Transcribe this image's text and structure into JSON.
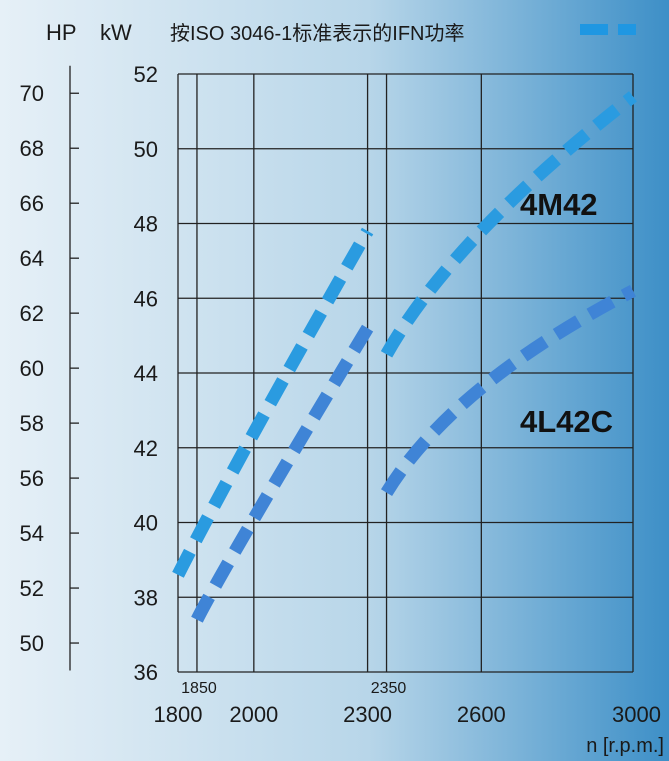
{
  "chart_data": {
    "type": "line",
    "title": "按ISO 3046-1标准表示的IFN功率",
    "xlabel": "n [r.p.m.]",
    "ylabel_left": "HP",
    "ylabel_right": "kW",
    "xlim": [
      1800,
      3000
    ],
    "ylim_kw": [
      36,
      52
    ],
    "ylim_hp": [
      49,
      71
    ],
    "x_ticks": [
      1800,
      2000,
      2300,
      2600,
      3000
    ],
    "x_minor_ticks": [
      1850,
      2350
    ],
    "x_minor_labels": [
      "1850",
      "2350"
    ],
    "kw_ticks": [
      36,
      38,
      40,
      42,
      44,
      46,
      48,
      50,
      52
    ],
    "hp_ticks": [
      50,
      52,
      54,
      56,
      58,
      60,
      62,
      64,
      66,
      68,
      70
    ],
    "grid": true,
    "series": [
      {
        "name": "4M42",
        "color": "#2a9be0",
        "x": [
          1800,
          2000,
          2300
        ],
        "y": [
          38.6,
          42.4,
          47.8
        ]
      },
      {
        "name": "4M42",
        "color": "#2a9be0",
        "x": [
          2350,
          2600,
          3000
        ],
        "y": [
          44.5,
          47.8,
          51.4
        ]
      },
      {
        "name": "4L42C",
        "color": "#3f84d6",
        "x": [
          1850,
          2000,
          2300
        ],
        "y": [
          37.4,
          40.1,
          45.2
        ]
      },
      {
        "name": "4L42C",
        "color": "#3f84d6",
        "x": [
          2350,
          2600,
          3000
        ],
        "y": [
          40.8,
          43.6,
          46.2
        ]
      }
    ],
    "labels": [
      {
        "text": "4M42",
        "x": 2840,
        "y": 48.6
      },
      {
        "text": "4L42C",
        "x": 2840,
        "y": 42.6
      }
    ]
  },
  "legend_color": "#1f97e2"
}
